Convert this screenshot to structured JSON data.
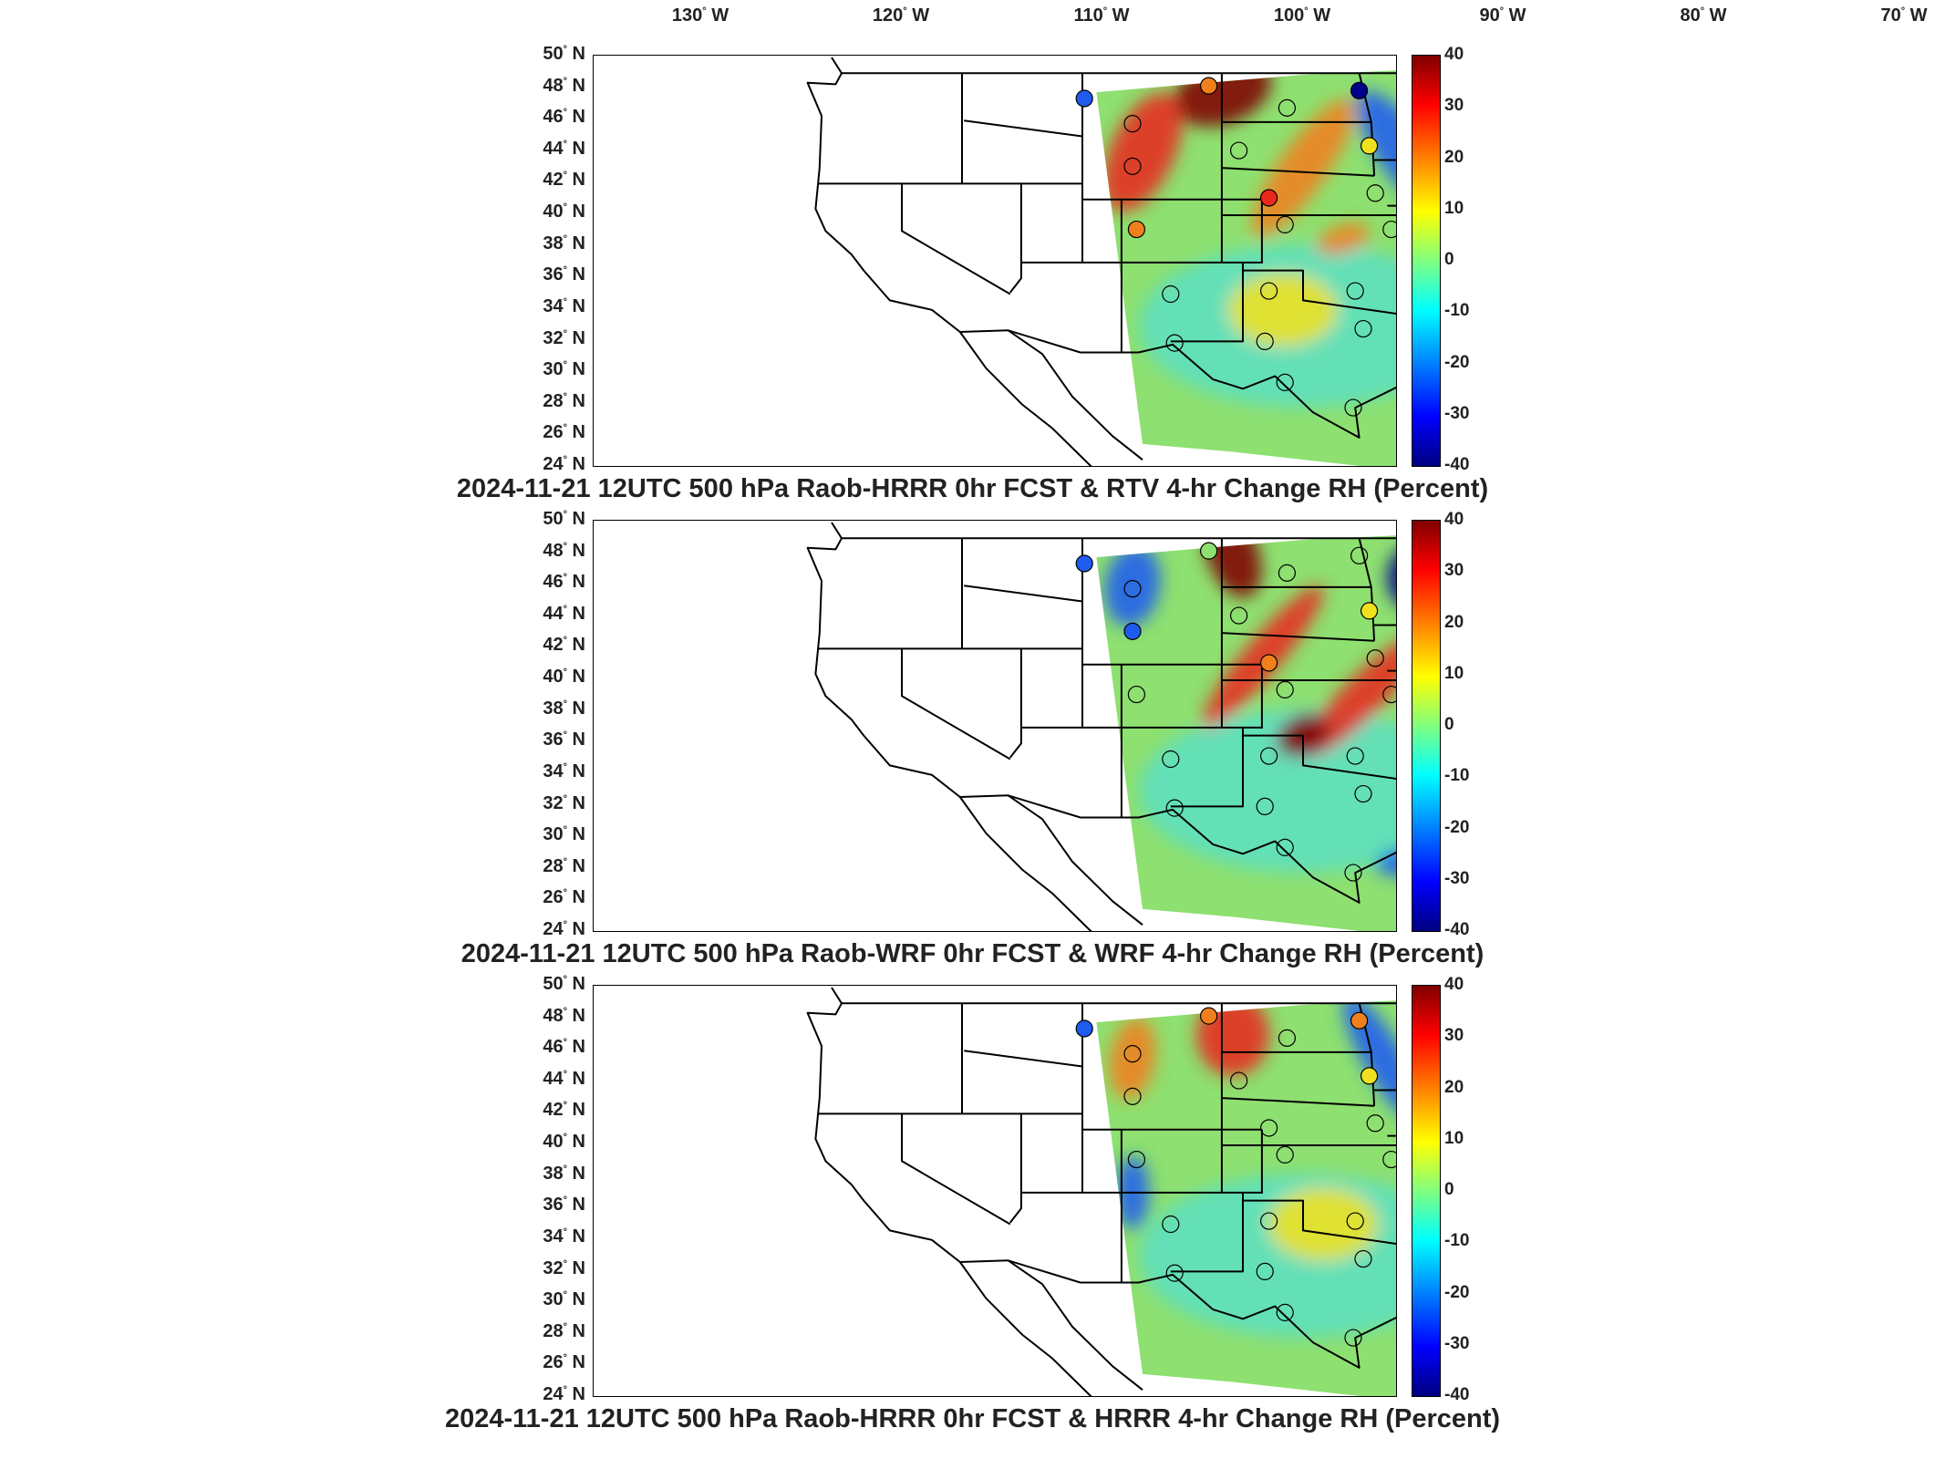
{
  "lon_labels": [
    {
      "deg": "130",
      "dir": "W"
    },
    {
      "deg": "120",
      "dir": "W"
    },
    {
      "deg": "110",
      "dir": "W"
    },
    {
      "deg": "100",
      "dir": "W"
    },
    {
      "deg": "90",
      "dir": "W"
    },
    {
      "deg": "80",
      "dir": "W"
    },
    {
      "deg": "70",
      "dir": "W"
    }
  ],
  "lat_labels": [
    "50",
    "48",
    "46",
    "44",
    "42",
    "40",
    "38",
    "36",
    "34",
    "32",
    "30",
    "28",
    "26",
    "24"
  ],
  "lat_dir": "N",
  "colorbar": {
    "ticks": [
      "40",
      "30",
      "20",
      "10",
      "0",
      "-10",
      "-20",
      "-30",
      "-40"
    ],
    "colormap": "jet",
    "min": -40,
    "max": 40
  },
  "panels": [
    {
      "title": "2024-11-21 12UTC 500 hPa Raob-HRRR 0hr FCST & RTV 4-hr Change RH (Percent)"
    },
    {
      "title": "2024-11-21 12UTC 500 hPa Raob-WRF 0hr FCST & WRF 4-hr Change RH (Percent)"
    },
    {
      "title": "2024-11-21 12UTC 500 hPa Raob-HRRR 0hr FCST & HRRR 4-hr Change RH (Percent)"
    }
  ],
  "colors": {
    "dark_red": "#800000",
    "red": "#e8281c",
    "orange": "#f0801c",
    "yellow": "#f0e020",
    "green": "#8ee070",
    "cyan": "#40e0f0",
    "blue": "#1e5cf0",
    "dark_blue": "#00008c"
  }
}
